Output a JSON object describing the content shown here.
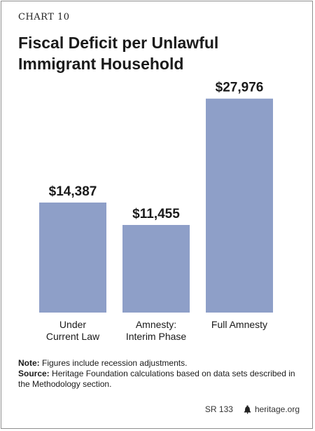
{
  "header": {
    "chart_label": "CHART 10"
  },
  "chart_data": {
    "type": "bar",
    "title": "Fiscal Deficit per Unlawful Immigrant Household",
    "categories": [
      [
        "Under",
        "Current Law"
      ],
      [
        "Amnesty:",
        "Interim Phase"
      ],
      [
        "Full Amnesty"
      ]
    ],
    "values": [
      14387,
      11455,
      27976
    ],
    "value_labels": [
      "$14,387",
      "$11,455",
      "$27,976"
    ],
    "bar_color": "#8e9fc8",
    "ylim": [
      0,
      28500
    ]
  },
  "notes": {
    "note_label": "Note:",
    "note_text": " Figures include recession adjustments.",
    "source_label": "Source:",
    "source_text": " Heritage Foundation calculations based on data sets described in the Methodology section."
  },
  "footer": {
    "report_id": "SR 133",
    "site": "heritage.org",
    "logo_icon": "liberty-bell-icon"
  }
}
